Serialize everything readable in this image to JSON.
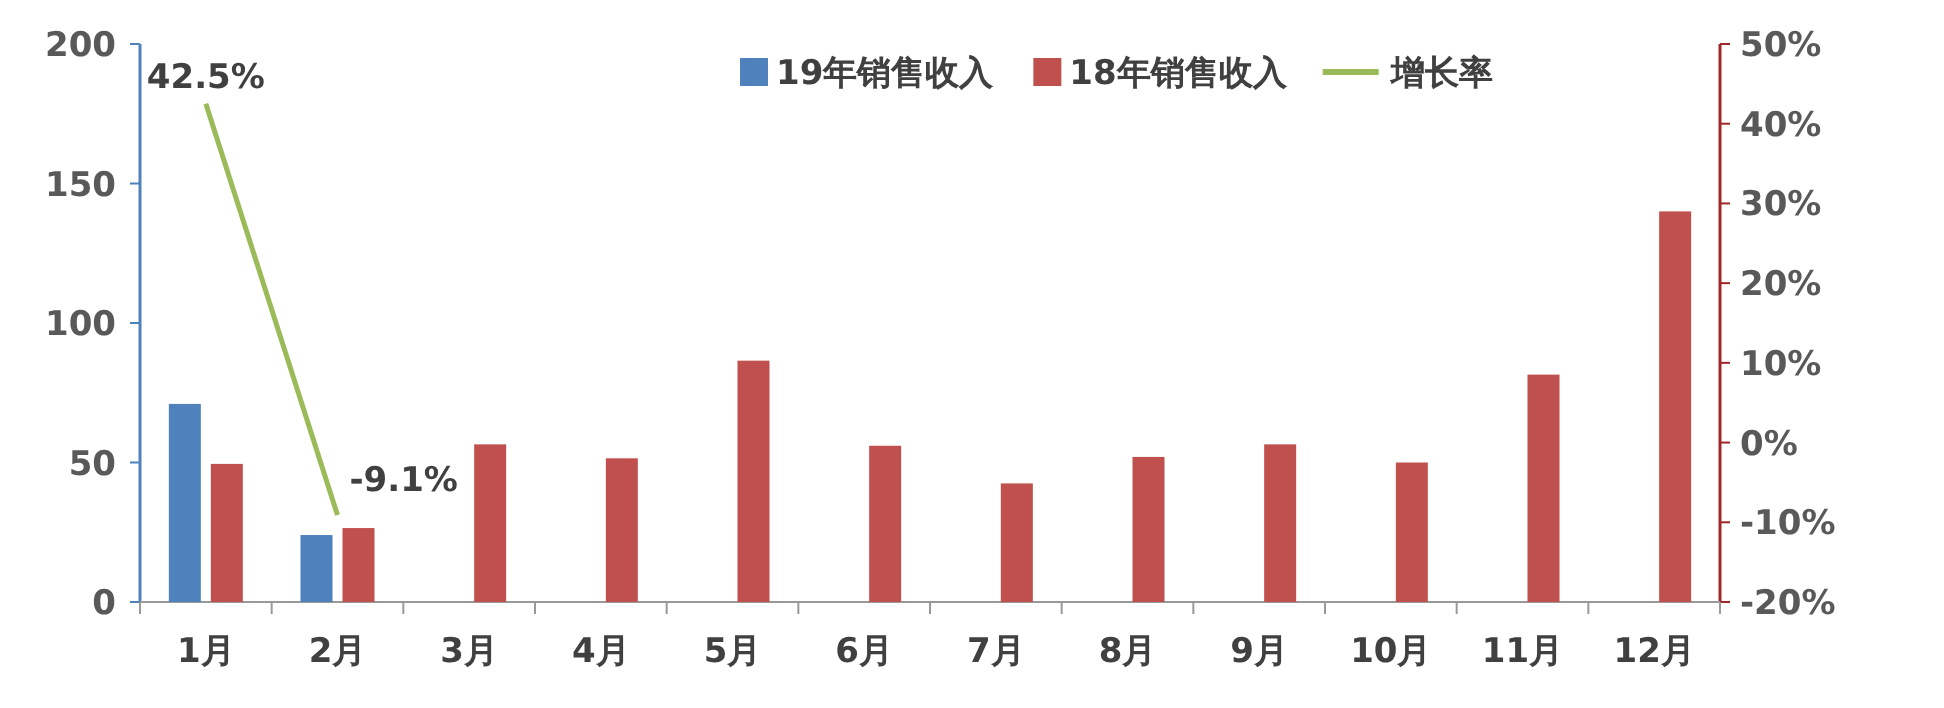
{
  "chart_data": {
    "type": "bar",
    "categories": [
      "1月",
      "2月",
      "3月",
      "4月",
      "5月",
      "6月",
      "7月",
      "8月",
      "9月",
      "10月",
      "11月",
      "12月"
    ],
    "series": [
      {
        "name": "19年销售收入",
        "color": "#4f81bd",
        "values": [
          71,
          24,
          null,
          null,
          null,
          null,
          null,
          null,
          null,
          null,
          null,
          null
        ]
      },
      {
        "name": "18年销售收入",
        "color": "#c0504d",
        "values": [
          49.5,
          26.5,
          56.5,
          51.5,
          86.5,
          56,
          42.5,
          52,
          56.5,
          50,
          81.5,
          140
        ]
      },
      {
        "name": "增长率",
        "color": "#9bbb59",
        "type": "line",
        "axis": "y2",
        "values": [
          42.5,
          -9.1,
          null,
          null,
          null,
          null,
          null,
          null,
          null,
          null,
          null,
          null
        ],
        "value_labels": [
          "42.5%",
          "-9.1%",
          null,
          null,
          null,
          null,
          null,
          null,
          null,
          null,
          null,
          null
        ]
      }
    ],
    "ylim": [
      0,
      200
    ],
    "yticks": [
      0,
      50,
      100,
      150,
      200
    ],
    "y2lim": [
      -20,
      50
    ],
    "y2ticks": [
      {
        "value": -20,
        "label": "-20%"
      },
      {
        "value": -10,
        "label": "-10%"
      },
      {
        "value": 0,
        "label": "0%"
      },
      {
        "value": 10,
        "label": "10%"
      },
      {
        "value": 20,
        "label": "20%"
      },
      {
        "value": 30,
        "label": "30%"
      },
      {
        "value": 40,
        "label": "40%"
      },
      {
        "value": 50,
        "label": "50%"
      }
    ],
    "legend": "top",
    "marker": "none",
    "line_style": "solid",
    "grid": false
  }
}
